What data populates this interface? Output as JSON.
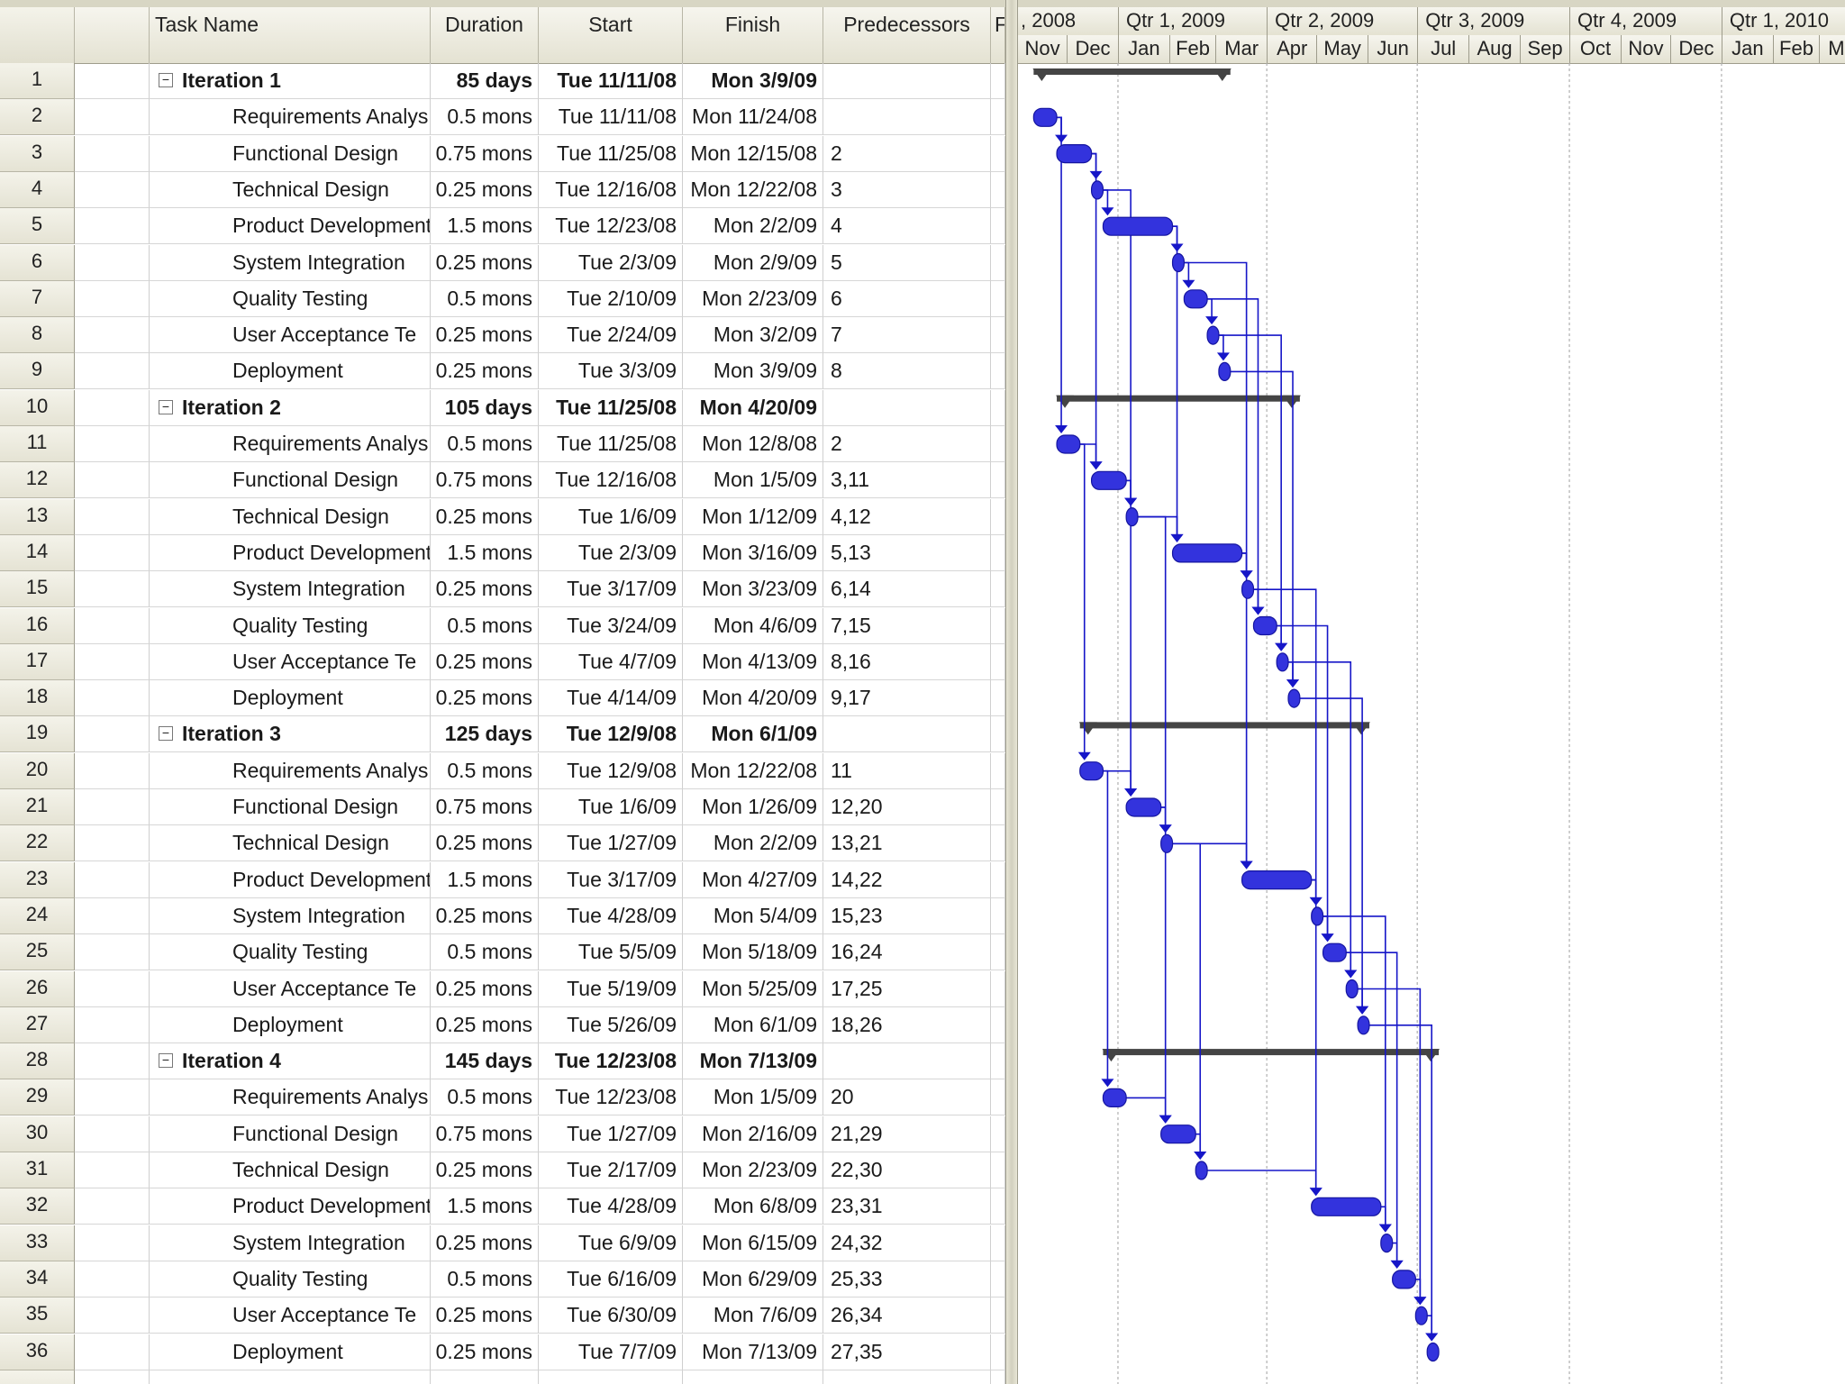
{
  "columns": {
    "indicators_icon": "info-icon",
    "task_name": "Task Name",
    "duration": "Duration",
    "start": "Start",
    "finish": "Finish",
    "predecessors": "Predecessors",
    "more": "F"
  },
  "timescale": {
    "top_tiers": [
      ", 2008",
      "Qtr 1, 2009",
      "Qtr 2, 2009",
      "Qtr 3, 2009",
      "Qtr 4, 2009",
      "Qtr 1, 2010"
    ],
    "months": [
      "Nov",
      "Dec",
      "Jan",
      "Feb",
      "Mar",
      "Apr",
      "May",
      "Jun",
      "Jul",
      "Aug",
      "Sep",
      "Oct",
      "Nov",
      "Dec",
      "Jan",
      "Feb",
      "Mar"
    ]
  },
  "colors": {
    "task_bar": "#3333dd",
    "summary_bar": "#444444",
    "link": "#1616c8"
  },
  "tasks": [
    {
      "id": "1",
      "name": "Iteration 1",
      "duration": "85 days",
      "start": "Tue 11/11/08",
      "finish": "Mon 3/9/09",
      "pred": "",
      "summary": true
    },
    {
      "id": "2",
      "name": "Requirements Analys",
      "duration": "0.5 mons",
      "start": "Tue 11/11/08",
      "finish": "Mon 11/24/08",
      "pred": "",
      "summary": false
    },
    {
      "id": "3",
      "name": "Functional Design",
      "duration": "0.75 mons",
      "start": "Tue 11/25/08",
      "finish": "Mon 12/15/08",
      "pred": "2",
      "summary": false
    },
    {
      "id": "4",
      "name": "Technical Design",
      "duration": "0.25 mons",
      "start": "Tue 12/16/08",
      "finish": "Mon 12/22/08",
      "pred": "3",
      "summary": false
    },
    {
      "id": "5",
      "name": "Product Development",
      "duration": "1.5 mons",
      "start": "Tue 12/23/08",
      "finish": "Mon 2/2/09",
      "pred": "4",
      "summary": false
    },
    {
      "id": "6",
      "name": "System Integration",
      "duration": "0.25 mons",
      "start": "Tue 2/3/09",
      "finish": "Mon 2/9/09",
      "pred": "5",
      "summary": false
    },
    {
      "id": "7",
      "name": "Quality Testing",
      "duration": "0.5 mons",
      "start": "Tue 2/10/09",
      "finish": "Mon 2/23/09",
      "pred": "6",
      "summary": false
    },
    {
      "id": "8",
      "name": "User Acceptance Te",
      "duration": "0.25 mons",
      "start": "Tue 2/24/09",
      "finish": "Mon 3/2/09",
      "pred": "7",
      "summary": false
    },
    {
      "id": "9",
      "name": "Deployment",
      "duration": "0.25 mons",
      "start": "Tue 3/3/09",
      "finish": "Mon 3/9/09",
      "pred": "8",
      "summary": false
    },
    {
      "id": "10",
      "name": "Iteration 2",
      "duration": "105 days",
      "start": "Tue 11/25/08",
      "finish": "Mon 4/20/09",
      "pred": "",
      "summary": true
    },
    {
      "id": "11",
      "name": "Requirements Analys",
      "duration": "0.5 mons",
      "start": "Tue 11/25/08",
      "finish": "Mon 12/8/08",
      "pred": "2",
      "summary": false
    },
    {
      "id": "12",
      "name": "Functional Design",
      "duration": "0.75 mons",
      "start": "Tue 12/16/08",
      "finish": "Mon 1/5/09",
      "pred": "3,11",
      "summary": false
    },
    {
      "id": "13",
      "name": "Technical Design",
      "duration": "0.25 mons",
      "start": "Tue 1/6/09",
      "finish": "Mon 1/12/09",
      "pred": "4,12",
      "summary": false
    },
    {
      "id": "14",
      "name": "Product Development",
      "duration": "1.5 mons",
      "start": "Tue 2/3/09",
      "finish": "Mon 3/16/09",
      "pred": "5,13",
      "summary": false
    },
    {
      "id": "15",
      "name": "System Integration",
      "duration": "0.25 mons",
      "start": "Tue 3/17/09",
      "finish": "Mon 3/23/09",
      "pred": "6,14",
      "summary": false
    },
    {
      "id": "16",
      "name": "Quality Testing",
      "duration": "0.5 mons",
      "start": "Tue 3/24/09",
      "finish": "Mon 4/6/09",
      "pred": "7,15",
      "summary": false
    },
    {
      "id": "17",
      "name": "User Acceptance Te",
      "duration": "0.25 mons",
      "start": "Tue 4/7/09",
      "finish": "Mon 4/13/09",
      "pred": "8,16",
      "summary": false
    },
    {
      "id": "18",
      "name": "Deployment",
      "duration": "0.25 mons",
      "start": "Tue 4/14/09",
      "finish": "Mon 4/20/09",
      "pred": "9,17",
      "summary": false
    },
    {
      "id": "19",
      "name": "Iteration 3",
      "duration": "125 days",
      "start": "Tue 12/9/08",
      "finish": "Mon 6/1/09",
      "pred": "",
      "summary": true
    },
    {
      "id": "20",
      "name": "Requirements Analys",
      "duration": "0.5 mons",
      "start": "Tue 12/9/08",
      "finish": "Mon 12/22/08",
      "pred": "11",
      "summary": false
    },
    {
      "id": "21",
      "name": "Functional Design",
      "duration": "0.75 mons",
      "start": "Tue 1/6/09",
      "finish": "Mon 1/26/09",
      "pred": "12,20",
      "summary": false
    },
    {
      "id": "22",
      "name": "Technical Design",
      "duration": "0.25 mons",
      "start": "Tue 1/27/09",
      "finish": "Mon 2/2/09",
      "pred": "13,21",
      "summary": false
    },
    {
      "id": "23",
      "name": "Product Development",
      "duration": "1.5 mons",
      "start": "Tue 3/17/09",
      "finish": "Mon 4/27/09",
      "pred": "14,22",
      "summary": false
    },
    {
      "id": "24",
      "name": "System Integration",
      "duration": "0.25 mons",
      "start": "Tue 4/28/09",
      "finish": "Mon 5/4/09",
      "pred": "15,23",
      "summary": false
    },
    {
      "id": "25",
      "name": "Quality Testing",
      "duration": "0.5 mons",
      "start": "Tue 5/5/09",
      "finish": "Mon 5/18/09",
      "pred": "16,24",
      "summary": false
    },
    {
      "id": "26",
      "name": "User Acceptance Te",
      "duration": "0.25 mons",
      "start": "Tue 5/19/09",
      "finish": "Mon 5/25/09",
      "pred": "17,25",
      "summary": false
    },
    {
      "id": "27",
      "name": "Deployment",
      "duration": "0.25 mons",
      "start": "Tue 5/26/09",
      "finish": "Mon 6/1/09",
      "pred": "18,26",
      "summary": false
    },
    {
      "id": "28",
      "name": "Iteration 4",
      "duration": "145 days",
      "start": "Tue 12/23/08",
      "finish": "Mon 7/13/09",
      "pred": "",
      "summary": true
    },
    {
      "id": "29",
      "name": "Requirements Analys",
      "duration": "0.5 mons",
      "start": "Tue 12/23/08",
      "finish": "Mon 1/5/09",
      "pred": "20",
      "summary": false
    },
    {
      "id": "30",
      "name": "Functional Design",
      "duration": "0.75 mons",
      "start": "Tue 1/27/09",
      "finish": "Mon 2/16/09",
      "pred": "21,29",
      "summary": false
    },
    {
      "id": "31",
      "name": "Technical Design",
      "duration": "0.25 mons",
      "start": "Tue 2/17/09",
      "finish": "Mon 2/23/09",
      "pred": "22,30",
      "summary": false
    },
    {
      "id": "32",
      "name": "Product Development",
      "duration": "1.5 mons",
      "start": "Tue 4/28/09",
      "finish": "Mon 6/8/09",
      "pred": "23,31",
      "summary": false
    },
    {
      "id": "33",
      "name": "System Integration",
      "duration": "0.25 mons",
      "start": "Tue 6/9/09",
      "finish": "Mon 6/15/09",
      "pred": "24,32",
      "summary": false
    },
    {
      "id": "34",
      "name": "Quality Testing",
      "duration": "0.5 mons",
      "start": "Tue 6/16/09",
      "finish": "Mon 6/29/09",
      "pred": "25,33",
      "summary": false
    },
    {
      "id": "35",
      "name": "User Acceptance Te",
      "duration": "0.25 mons",
      "start": "Tue 6/30/09",
      "finish": "Mon 7/6/09",
      "pred": "26,34",
      "summary": false
    },
    {
      "id": "36",
      "name": "Deployment",
      "duration": "0.25 mons",
      "start": "Tue 7/7/09",
      "finish": "Mon 7/13/09",
      "pred": "27,35",
      "summary": false
    }
  ]
}
